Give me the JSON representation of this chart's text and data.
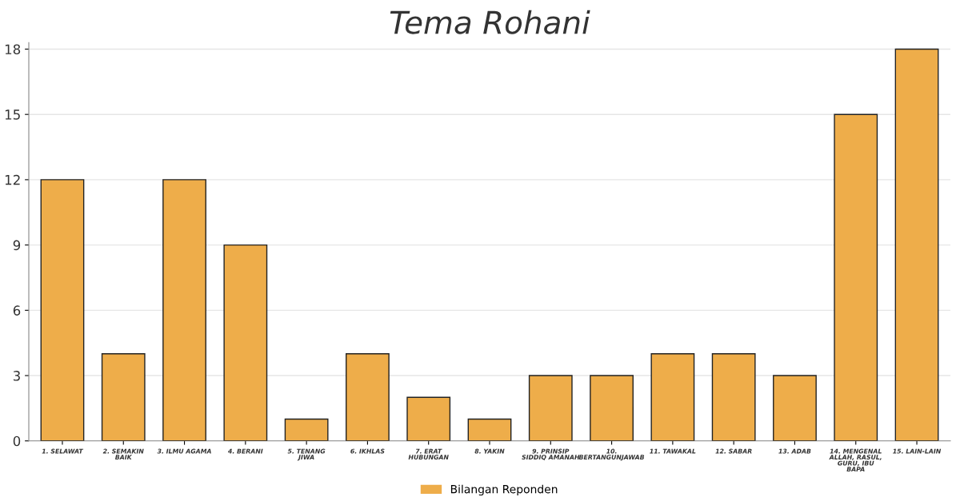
{
  "chart_data": {
    "type": "bar",
    "title": "Tema Rohani",
    "categories": [
      "1. SELAWAT",
      "2. SEMAKIN BAIK",
      "3. ILMU AGAMA",
      "4. BERANI",
      "5. TENANG JIWA",
      "6. IKHLAS",
      "7. ERAT HUBUNGAN",
      "8. YAKIN",
      "9. PRINSIP SIDDIQ AMANAH",
      "10. BERTANGUNJAWAB",
      "11. TAWAKAL",
      "12. SABAR",
      "13. ADAB",
      "14. MENGENAL ALLAH, RASUL, GURU, IBU BAPA",
      "15. LAIN-LAIN"
    ],
    "series": [
      {
        "name": "Bilangan Reponden",
        "color": "#eead4a",
        "values": [
          12,
          4,
          12,
          9,
          1,
          4,
          2,
          1,
          3,
          3,
          4,
          4,
          3,
          15,
          18
        ]
      }
    ],
    "ylim": [
      0,
      18.3
    ],
    "yticks": [
      0,
      3,
      6,
      9,
      12,
      15,
      18
    ],
    "grid": "y",
    "legend": "bottom"
  }
}
